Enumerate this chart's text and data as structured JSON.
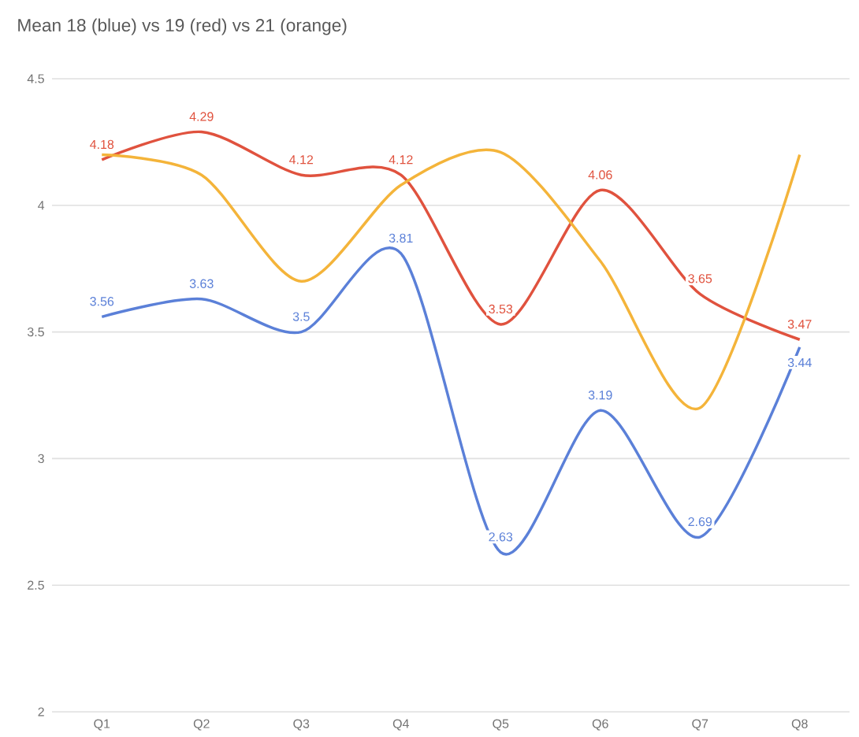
{
  "chart_data": {
    "type": "line",
    "title": "Mean 18 (blue) vs 19 (red) vs 21 (orange)",
    "categories": [
      "Q1",
      "Q2",
      "Q3",
      "Q4",
      "Q5",
      "Q6",
      "Q7",
      "Q8"
    ],
    "series": [
      {
        "color": "#5b80d8",
        "values": [
          3.56,
          3.63,
          3.5,
          3.81,
          2.63,
          3.19,
          2.69,
          3.44
        ],
        "value_labels": [
          "3.56",
          "3.63",
          "3.5",
          "3.81",
          "2.63",
          "3.19",
          "2.69",
          "3.44"
        ]
      },
      {
        "color": "#e0523e",
        "values": [
          4.18,
          4.29,
          4.12,
          4.12,
          3.53,
          4.06,
          3.65,
          3.47
        ],
        "value_labels": [
          "4.18",
          "4.29",
          "4.12",
          "4.12",
          "3.53",
          "4.06",
          "3.65",
          "3.47"
        ]
      },
      {
        "color": "#f4b43a",
        "values": [
          4.2,
          4.12,
          3.7,
          4.08,
          4.21,
          3.78,
          3.2,
          4.2
        ]
      }
    ],
    "ylim": [
      2,
      4.5
    ],
    "yticks": [
      2,
      2.5,
      3,
      3.5,
      4,
      4.5
    ],
    "grid": "y",
    "marker": "none",
    "line_style": "solid"
  }
}
